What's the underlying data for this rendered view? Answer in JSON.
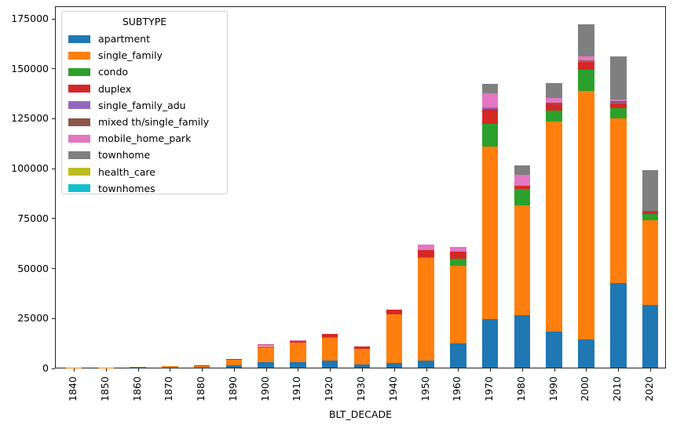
{
  "chart_data": {
    "type": "bar",
    "stacked": true,
    "title": "",
    "xlabel": "BLT_DECADE",
    "ylabel": "",
    "ylim": [
      0,
      175000
    ],
    "yticks": [
      0,
      25000,
      50000,
      75000,
      100000,
      125000,
      150000,
      175000
    ],
    "grid": false,
    "legend_title": "SUBTYPE",
    "legend_position": "upper-left",
    "categories": [
      "1840",
      "1850",
      "1860",
      "1870",
      "1880",
      "1890",
      "1900",
      "1910",
      "1920",
      "1930",
      "1940",
      "1950",
      "1960",
      "1970",
      "1980",
      "1990",
      "2000",
      "2010",
      "2020"
    ],
    "series": [
      {
        "name": "apartment",
        "color": "#1f77b4",
        "values": [
          0,
          0,
          0,
          0,
          0,
          1100,
          2700,
          2700,
          3500,
          1600,
          2200,
          3700,
          12000,
          24200,
          26200,
          18000,
          14100,
          42500,
          31500
        ]
      },
      {
        "name": "single_family",
        "color": "#ff7f0e",
        "values": [
          150,
          200,
          250,
          700,
          1250,
          2900,
          7800,
          9800,
          11300,
          8000,
          24600,
          51200,
          39200,
          86600,
          54900,
          105300,
          124400,
          82400,
          42400
        ]
      },
      {
        "name": "condo",
        "color": "#2ca02c",
        "values": [
          0,
          0,
          0,
          0,
          0,
          0,
          0,
          0,
          500,
          0,
          0,
          500,
          3200,
          11100,
          8200,
          5600,
          10700,
          5000,
          3000
        ]
      },
      {
        "name": "duplex",
        "color": "#d62728",
        "values": [
          0,
          0,
          0,
          0,
          50,
          300,
          300,
          300,
          1600,
          900,
          2400,
          3500,
          3500,
          7600,
          1600,
          3100,
          4000,
          2300,
          1000
        ]
      },
      {
        "name": "single_family_adu",
        "color": "#9467bd",
        "values": [
          0,
          0,
          0,
          0,
          0,
          0,
          0,
          0,
          0,
          0,
          0,
          0,
          0,
          900,
          0,
          0,
          400,
          400,
          0
        ]
      },
      {
        "name": "mixed th/single_family",
        "color": "#8c564b",
        "values": [
          0,
          0,
          0,
          0,
          0,
          0,
          600,
          700,
          0,
          0,
          0,
          0,
          0,
          0,
          0,
          500,
          400,
          800,
          700
        ]
      },
      {
        "name": "mobile_home_park",
        "color": "#e377c2",
        "values": [
          0,
          0,
          0,
          0,
          0,
          0,
          400,
          400,
          0,
          0,
          0,
          2600,
          2700,
          6900,
          5500,
          2500,
          1700,
          800,
          0
        ]
      },
      {
        "name": "townhome",
        "color": "#7f7f7f",
        "values": [
          0,
          0,
          0,
          0,
          0,
          0,
          0,
          0,
          0,
          0,
          0,
          0,
          0,
          4600,
          5000,
          7300,
          16300,
          21600,
          20400
        ]
      },
      {
        "name": "health_care",
        "color": "#bcbd22",
        "values": [
          0,
          0,
          0,
          0,
          0,
          0,
          0,
          0,
          0,
          0,
          0,
          0,
          0,
          0,
          0,
          0,
          0,
          0,
          0
        ]
      },
      {
        "name": "townhomes",
        "color": "#17becf",
        "values": [
          0,
          0,
          0,
          0,
          0,
          0,
          0,
          0,
          0,
          0,
          0,
          0,
          0,
          0,
          0,
          0,
          0,
          0,
          0
        ]
      }
    ]
  }
}
